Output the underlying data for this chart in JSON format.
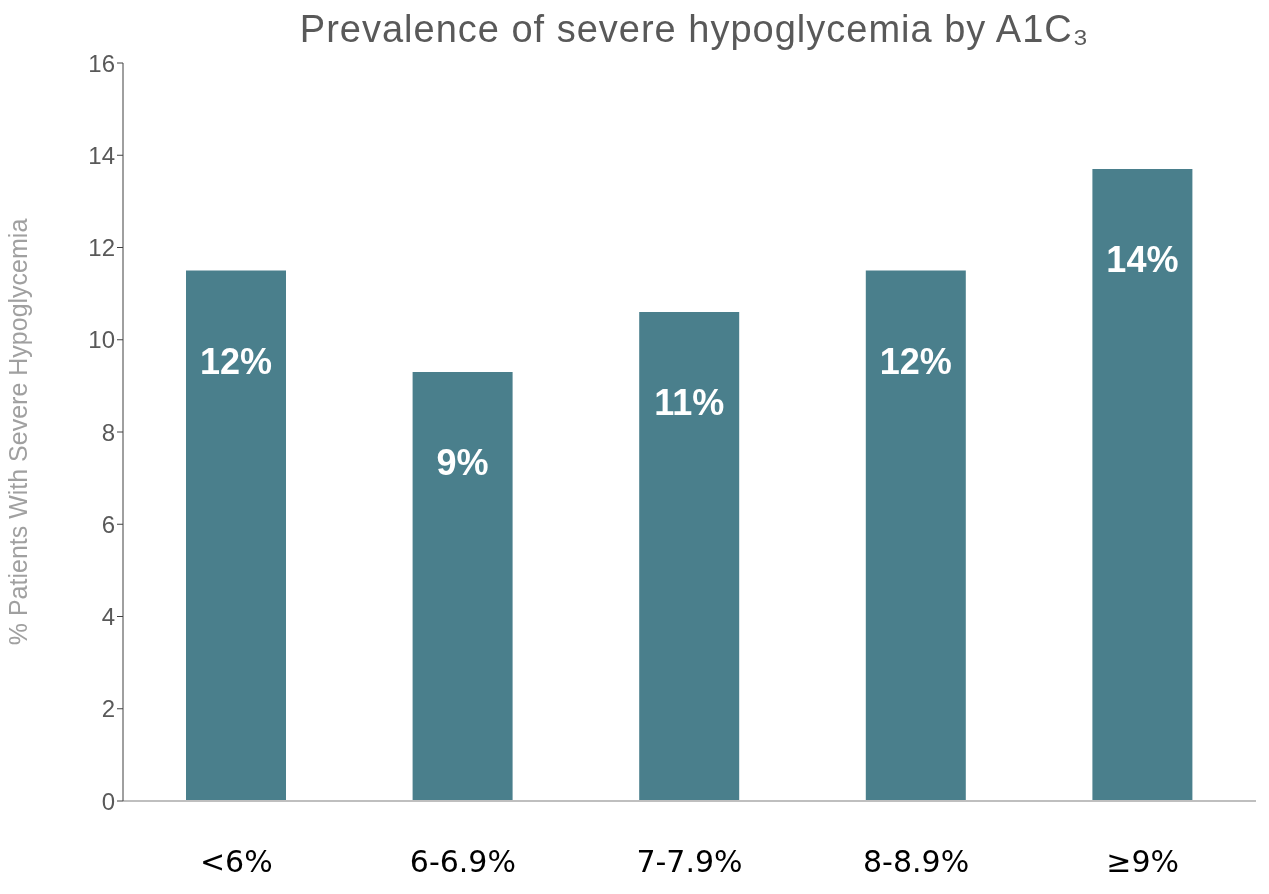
{
  "chart_data": {
    "type": "bar",
    "title": "Prevalence of severe hypoglycemia by A1C₃",
    "ylabel": "% Patients With Severe Hypoglycemia",
    "categories": [
      "<6%",
      "6-6.9%",
      "7-7.9%",
      "8-8.9%",
      "≥9%"
    ],
    "values": [
      11.5,
      9.3,
      10.6,
      11.5,
      13.7
    ],
    "value_labels": [
      "12%",
      "9%",
      "11%",
      "12%",
      "14%"
    ],
    "color": "#4a7f8c",
    "ylim": [
      0,
      16
    ],
    "yticks": [
      0,
      2,
      4,
      6,
      8,
      10,
      12,
      14,
      16
    ],
    "grid": false,
    "legend": false
  }
}
